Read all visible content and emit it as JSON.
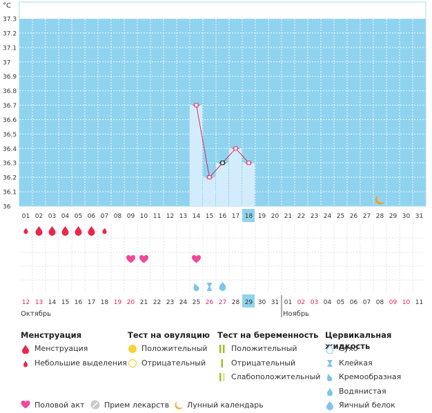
{
  "chart_data": {
    "type": "line",
    "unit": "°C",
    "y_ticks": [
      "37.3",
      "37.2",
      "37.1",
      "37",
      "36.9",
      "36.8",
      "36.7",
      "36.6",
      "36.5",
      "36.4",
      "36.3",
      "36.2",
      "36.1",
      "36"
    ],
    "ylim": [
      36,
      37.3
    ],
    "cycle_days": [
      "01",
      "02",
      "03",
      "04",
      "05",
      "06",
      "07",
      "08",
      "09",
      "10",
      "11",
      "12",
      "13",
      "14",
      "15",
      "16",
      "17",
      "18",
      "19",
      "20",
      "21",
      "22",
      "23",
      "24",
      "25",
      "26",
      "27",
      "28",
      "29",
      "30",
      "31"
    ],
    "current_cycle_day": "18",
    "series": [
      {
        "points": [
          {
            "day": 14,
            "temp": 36.7
          },
          {
            "day": 15,
            "temp": 36.2
          },
          {
            "day": 16,
            "temp": 36.3
          },
          {
            "day": 17,
            "temp": 36.4
          },
          {
            "day": 18,
            "temp": 36.3
          }
        ]
      }
    ],
    "point_highlight_day": 16,
    "menstruation": [
      {
        "day": 1,
        "type": "light"
      },
      {
        "day": 2,
        "type": "full"
      },
      {
        "day": 3,
        "type": "full"
      },
      {
        "day": 4,
        "type": "full"
      },
      {
        "day": 5,
        "type": "full"
      },
      {
        "day": 6,
        "type": "full"
      },
      {
        "day": 7,
        "type": "light"
      }
    ],
    "intercourse_days": [
      9,
      10,
      14
    ],
    "cervical_fluid": [
      {
        "day": 14,
        "type": "creamy"
      },
      {
        "day": 15,
        "type": "sticky"
      },
      {
        "day": 16,
        "type": "egg_white"
      }
    ],
    "moon_day": 28,
    "dates": [
      {
        "label": "12",
        "red": true
      },
      {
        "label": "13",
        "red": true
      },
      {
        "label": "14",
        "red": false
      },
      {
        "label": "15",
        "red": false
      },
      {
        "label": "16",
        "red": false
      },
      {
        "label": "17",
        "red": false
      },
      {
        "label": "18",
        "red": false
      },
      {
        "label": "19",
        "red": true
      },
      {
        "label": "20",
        "red": true
      },
      {
        "label": "21",
        "red": false
      },
      {
        "label": "22",
        "red": false
      },
      {
        "label": "23",
        "red": false
      },
      {
        "label": "24",
        "red": false
      },
      {
        "label": "25",
        "red": false
      },
      {
        "label": "26",
        "red": true
      },
      {
        "label": "27",
        "red": true
      },
      {
        "label": "28",
        "red": false
      },
      {
        "label": "29",
        "red": false
      },
      {
        "label": "30",
        "red": false
      },
      {
        "label": "31",
        "red": false
      },
      {
        "label": "01",
        "red": false
      },
      {
        "label": "02",
        "red": true
      },
      {
        "label": "03",
        "red": true
      },
      {
        "label": "04",
        "red": false
      },
      {
        "label": "05",
        "red": false
      },
      {
        "label": "06",
        "red": false
      },
      {
        "label": "07",
        "red": false
      },
      {
        "label": "08",
        "red": false
      },
      {
        "label": "09",
        "red": true
      },
      {
        "label": "10",
        "red": true
      },
      {
        "label": "11",
        "red": false
      }
    ],
    "months": [
      {
        "label": "Октябрь",
        "start_index": 0
      },
      {
        "label": "Ноябрь",
        "start_index": 20
      }
    ],
    "colors": {
      "plot_bg": "#8fd3ef",
      "bar": "#d3ecfb",
      "line": "#e0245e",
      "highlight": "#8fd3ef",
      "drop": "#e8274b",
      "heart": "#f0489a",
      "fluid": "#7cc6ea",
      "moon": "#f7a21b",
      "weekend": "#e0245e"
    }
  },
  "legend": {
    "menstruation": {
      "title": "Менструация",
      "items": [
        {
          "label": "Менструация",
          "icon": "drop-icon"
        },
        {
          "label": "Небольшие выделения",
          "icon": "small-drop-icon"
        }
      ]
    },
    "ovulation": {
      "title": "Тест на овуляцию",
      "items": [
        {
          "label": "Положительный",
          "icon": "filled-circle-icon"
        },
        {
          "label": "Отрицательный",
          "icon": "empty-circle-icon"
        }
      ]
    },
    "pregnancy": {
      "title": "Тест на беременность",
      "items": [
        {
          "label": "Положительный",
          "icon": "two-stripes-icon"
        },
        {
          "label": "Отрицательный",
          "icon": "one-stripe-icon"
        },
        {
          "label": "Слабоположительный",
          "icon": "faint-stripes-icon"
        }
      ]
    },
    "cervical": {
      "title": "Цервикальная жидкость",
      "items": [
        {
          "label": "Сухо",
          "icon": "dry-icon"
        },
        {
          "label": "Клейкая",
          "icon": "sticky-icon"
        },
        {
          "label": "Кремообразная",
          "icon": "creamy-icon"
        },
        {
          "label": "Водянистая",
          "icon": "watery-icon"
        },
        {
          "label": "Яичный белок",
          "icon": "egg-white-icon"
        }
      ]
    },
    "bottom": [
      {
        "label": "Половой акт",
        "icon": "heart-icon"
      },
      {
        "label": "Прием лекарств",
        "icon": "pill-icon"
      },
      {
        "label": "Лунный календарь",
        "icon": "moon-icon"
      }
    ]
  }
}
